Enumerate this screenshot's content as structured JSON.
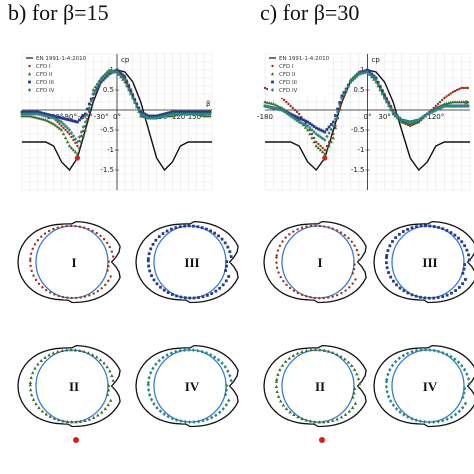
{
  "headings": {
    "b": "b) for β=15",
    "c": "c) for β=30"
  },
  "legend": [
    "EN 1991-1-4:2010",
    "CFD I",
    "CFD II",
    "CFD III",
    "CFD IV"
  ],
  "chart_data": [
    {
      "type": "line",
      "title": "b) for β=15",
      "ylabel": "cp",
      "xlabel": "β",
      "xticks": [
        "-120°",
        "-90°",
        "-60°",
        "-30°",
        "0°",
        "90°",
        "120°",
        "150°"
      ],
      "x": [
        -180,
        -165,
        -150,
        -135,
        -120,
        -105,
        -90,
        -75,
        -60,
        -45,
        -30,
        -15,
        0,
        15,
        30,
        45,
        60,
        75,
        90,
        105,
        120,
        135,
        150,
        165,
        180
      ],
      "series": [
        {
          "name": "EN 1991-1-4:2010",
          "values": [
            -0.8,
            -0.8,
            -0.8,
            -0.8,
            -0.9,
            -1.3,
            -1.5,
            -1.2,
            -0.5,
            0.2,
            0.7,
            0.95,
            1.0,
            0.95,
            0.7,
            0.2,
            -0.5,
            -1.2,
            -1.5,
            -1.3,
            -0.9,
            -0.8,
            -0.8,
            -0.8,
            -0.8
          ]
        },
        {
          "name": "CFD I",
          "values": [
            -0.1,
            -0.1,
            -0.1,
            -0.15,
            -0.2,
            -0.4,
            -0.6,
            -0.9,
            -0.4,
            0.3,
            0.7,
            0.9,
            1.0,
            0.85,
            0.4,
            -0.1,
            -0.2,
            -0.2,
            -0.15,
            -0.1,
            -0.1,
            -0.1,
            -0.05,
            -0.1,
            -0.1
          ]
        },
        {
          "name": "CFD II",
          "values": [
            -0.15,
            -0.15,
            -0.2,
            -0.25,
            -0.35,
            -0.5,
            -0.9,
            -1.1,
            -0.5,
            0.5,
            0.8,
            1.0,
            0.95,
            0.7,
            0.3,
            -0.15,
            -0.2,
            -0.2,
            -0.15,
            -0.15,
            -0.1,
            -0.1,
            -0.1,
            -0.15,
            -0.15
          ]
        },
        {
          "name": "CFD III",
          "values": [
            -0.05,
            -0.05,
            -0.05,
            -0.1,
            -0.15,
            -0.2,
            -0.25,
            -0.3,
            -0.1,
            0.4,
            0.7,
            0.9,
            1.0,
            0.8,
            0.35,
            -0.05,
            -0.15,
            -0.15,
            -0.1,
            -0.05,
            -0.05,
            -0.05,
            -0.05,
            -0.05,
            -0.05
          ]
        },
        {
          "name": "CFD IV",
          "values": [
            -0.1,
            -0.1,
            -0.1,
            -0.15,
            -0.2,
            -0.3,
            -0.5,
            -0.8,
            -0.3,
            0.4,
            0.75,
            0.95,
            0.95,
            0.75,
            0.3,
            -0.1,
            -0.2,
            -0.2,
            -0.15,
            -0.1,
            -0.1,
            -0.1,
            -0.1,
            -0.1,
            -0.1
          ]
        }
      ]
    },
    {
      "type": "line",
      "title": "c) for β=30",
      "ylabel": "cp",
      "xlabel": "β",
      "xticks": [
        "-180",
        "0°",
        "30°",
        "120°"
      ],
      "x": [
        -180,
        -165,
        -150,
        -135,
        -120,
        -105,
        -90,
        -75,
        -60,
        -45,
        -30,
        -15,
        0,
        15,
        30,
        45,
        60,
        75,
        90,
        105,
        120,
        135,
        150,
        165,
        180
      ],
      "series": [
        {
          "name": "EN 1991-1-4:2010",
          "values": [
            -0.8,
            -0.8,
            -0.8,
            -0.8,
            -0.9,
            -1.3,
            -1.5,
            -1.2,
            -0.5,
            0.2,
            0.7,
            0.95,
            1.0,
            0.95,
            0.7,
            0.2,
            -0.5,
            -1.2,
            -1.5,
            -1.3,
            -0.9,
            -0.8,
            -0.8,
            -0.8,
            -0.8
          ]
        },
        {
          "name": "CFD I",
          "values": [
            0.55,
            0.45,
            0.3,
            0.1,
            -0.1,
            -0.4,
            -0.8,
            -1.0,
            -0.6,
            0.2,
            0.7,
            0.95,
            1.0,
            0.8,
            0.4,
            0.0,
            -0.3,
            -0.4,
            -0.3,
            -0.1,
            0.1,
            0.3,
            0.45,
            0.55,
            0.55
          ]
        },
        {
          "name": "CFD II",
          "values": [
            0.2,
            0.15,
            0.05,
            -0.1,
            -0.25,
            -0.5,
            -0.9,
            -1.1,
            -0.7,
            0.3,
            0.75,
            0.95,
            0.95,
            0.7,
            0.3,
            -0.1,
            -0.3,
            -0.35,
            -0.3,
            -0.1,
            0.05,
            0.15,
            0.2,
            0.2,
            0.2
          ]
        },
        {
          "name": "CFD III",
          "values": [
            0.1,
            0.05,
            0.0,
            -0.1,
            -0.2,
            -0.3,
            -0.45,
            -0.55,
            -0.3,
            0.35,
            0.7,
            0.9,
            1.0,
            0.8,
            0.35,
            -0.05,
            -0.25,
            -0.3,
            -0.25,
            -0.1,
            0.0,
            0.1,
            0.1,
            0.1,
            0.1
          ]
        },
        {
          "name": "CFD IV",
          "values": [
            0.1,
            0.05,
            0.0,
            -0.15,
            -0.3,
            -0.4,
            -0.6,
            -0.75,
            -0.4,
            0.3,
            0.7,
            0.9,
            0.95,
            0.75,
            0.3,
            -0.05,
            -0.25,
            -0.3,
            -0.25,
            -0.1,
            0.0,
            0.1,
            0.1,
            0.1,
            0.1
          ]
        }
      ]
    }
  ],
  "polar": {
    "labels": [
      "I",
      "III",
      "II",
      "IV",
      "I",
      "III",
      "II",
      "IV"
    ]
  },
  "colors": {
    "en": "#111111",
    "circle": "#3a7bd5",
    "cfd1": "#a03020",
    "cfd2": "#3a6b2a",
    "cfd3": "#2a3a8a",
    "cfd4": "#2a8a80",
    "marker_red": "#d22020"
  }
}
